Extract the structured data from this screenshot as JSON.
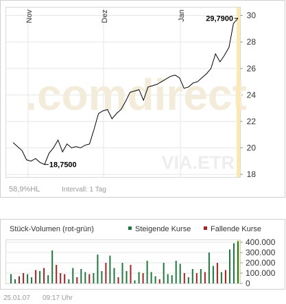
{
  "watermark": {
    "logo_text": ".comdirect",
    "exchange_label": "VIA.ETR"
  },
  "price_panel": {
    "hl_label": "58,9%HL",
    "interval_label": "Intervall: 1 Tag",
    "max_label": "29,7900",
    "min_label": "18,7500"
  },
  "volume_panel": {
    "title": "Stück-Volumen (rot-grün)",
    "legend": {
      "rising": "Steigende Kurse",
      "falling": "Fallende Kurse"
    }
  },
  "footer": {
    "date": "25.01.07",
    "time": "09:17 Uhr"
  },
  "colors": {
    "rising": "#1a7a3a",
    "falling": "#b11e1e",
    "line": "#000000",
    "highlight_band": "#fde9b0",
    "watermark": "#f3ecda",
    "axis_text": "#333333",
    "grid": "#e6e6e6"
  },
  "chart_data": [
    {
      "type": "line",
      "title": "",
      "x_ticks": [
        "Nov",
        "Dez",
        "Jan"
      ],
      "y_ticks": [
        "18",
        "20",
        "22",
        "24",
        "26",
        "28",
        "30"
      ],
      "ylim": [
        17.8,
        30.6
      ],
      "grid": true,
      "annotations": [
        {
          "text": "29,7900",
          "value": 29.79,
          "kind": "max"
        },
        {
          "text": "18,7500",
          "value": 18.75,
          "kind": "min"
        }
      ],
      "series": [
        {
          "values": [
            20.4,
            20.1,
            19.8,
            19.1,
            19.0,
            19.2,
            18.9,
            18.75,
            19.6,
            20.0,
            20.6,
            19.7,
            20.3,
            20.0,
            20.1,
            20.0,
            20.2,
            20.3,
            21.4,
            22.6,
            22.8,
            22.9,
            22.2,
            22.6,
            22.9,
            23.5,
            24.2,
            24.3,
            24.4,
            23.6,
            24.6,
            24.7,
            24.8,
            25.0,
            25.2,
            25.4,
            25.5,
            25.3,
            24.5,
            24.6,
            24.9,
            25.0,
            25.3,
            25.6,
            26.0,
            27.1,
            26.5,
            27.0,
            27.6,
            29.4,
            29.79
          ]
        }
      ]
    },
    {
      "type": "bar",
      "title": "Stück-Volumen (rot-grün)",
      "y_ticks": [
        "0",
        "100.000",
        "200.000",
        "300.000",
        "400.000"
      ],
      "ylim": [
        0,
        420000
      ],
      "legend_position": "top-right",
      "series": [
        {
          "name": "Steigende Kurse"
        },
        {
          "name": "Fallende Kurse"
        }
      ],
      "bars": [
        {
          "value": 90000,
          "direction": "up"
        },
        {
          "value": 40000,
          "direction": "up"
        },
        {
          "value": 70000,
          "direction": "down"
        },
        {
          "value": 100000,
          "direction": "down"
        },
        {
          "value": 90000,
          "direction": "up"
        },
        {
          "value": 60000,
          "direction": "up"
        },
        {
          "value": 130000,
          "direction": "down"
        },
        {
          "value": 120000,
          "direction": "up"
        },
        {
          "value": 150000,
          "direction": "down"
        },
        {
          "value": 80000,
          "direction": "up"
        },
        {
          "value": 320000,
          "direction": "up"
        },
        {
          "value": 180000,
          "direction": "down"
        },
        {
          "value": 100000,
          "direction": "down"
        },
        {
          "value": 90000,
          "direction": "down"
        },
        {
          "value": 40000,
          "direction": "up"
        },
        {
          "value": 150000,
          "direction": "up"
        },
        {
          "value": 60000,
          "direction": "down"
        },
        {
          "value": 140000,
          "direction": "up"
        },
        {
          "value": 110000,
          "direction": "up"
        },
        {
          "value": 90000,
          "direction": "down"
        },
        {
          "value": 100000,
          "direction": "up"
        },
        {
          "value": 280000,
          "direction": "up"
        },
        {
          "value": 120000,
          "direction": "up"
        },
        {
          "value": 200000,
          "direction": "down"
        },
        {
          "value": 270000,
          "direction": "up"
        },
        {
          "value": 150000,
          "direction": "up"
        },
        {
          "value": 60000,
          "direction": "down"
        },
        {
          "value": 200000,
          "direction": "up"
        },
        {
          "value": 120000,
          "direction": "up"
        },
        {
          "value": 180000,
          "direction": "down"
        },
        {
          "value": 30000,
          "direction": "up"
        },
        {
          "value": 110000,
          "direction": "up"
        },
        {
          "value": 100000,
          "direction": "down"
        },
        {
          "value": 220000,
          "direction": "up"
        },
        {
          "value": 110000,
          "direction": "up"
        },
        {
          "value": 70000,
          "direction": "up"
        },
        {
          "value": 40000,
          "direction": "down"
        },
        {
          "value": 200000,
          "direction": "up"
        },
        {
          "value": 90000,
          "direction": "up"
        },
        {
          "value": 80000,
          "direction": "up"
        },
        {
          "value": 220000,
          "direction": "up"
        },
        {
          "value": 190000,
          "direction": "up"
        },
        {
          "value": 100000,
          "direction": "down"
        },
        {
          "value": 60000,
          "direction": "up"
        },
        {
          "value": 140000,
          "direction": "up"
        },
        {
          "value": 100000,
          "direction": "down"
        },
        {
          "value": 140000,
          "direction": "up"
        },
        {
          "value": 110000,
          "direction": "down"
        },
        {
          "value": 300000,
          "direction": "up"
        },
        {
          "value": 170000,
          "direction": "up"
        },
        {
          "value": 200000,
          "direction": "down"
        },
        {
          "value": 110000,
          "direction": "up"
        },
        {
          "value": 130000,
          "direction": "down"
        },
        {
          "value": 330000,
          "direction": "up"
        },
        {
          "value": 390000,
          "direction": "up"
        },
        {
          "value": 410000,
          "direction": "up"
        }
      ]
    }
  ]
}
